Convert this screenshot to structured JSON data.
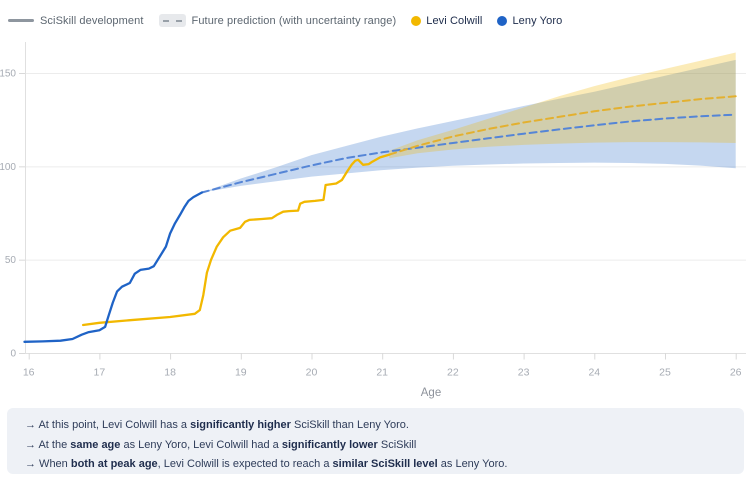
{
  "legend": {
    "sciskill_development": "SciSkill development",
    "future_prediction": "Future prediction (with uncertainty range)",
    "player1": "Levi Colwill",
    "player2": "Leny Yoro"
  },
  "colors": {
    "levi": "#F2B800",
    "levi_pred": "#E3B02F",
    "levi_band": "rgba(242,184,0,0.28)",
    "yoro": "#1F63C6",
    "yoro_pred": "#5585D6",
    "yoro_band": "rgba(31,99,198,0.26)",
    "grid": "#ececec",
    "axis": "#e0e0e0",
    "tick": "#d9d9d9",
    "tick_label": "#a6abb3",
    "axis_title": "#8d929b",
    "legend_text": "#5c6670",
    "player_text": "#1c2b4a",
    "panel_bg": "#eef1f6",
    "panel_text": "#2e3c59"
  },
  "chart_data": {
    "type": "line",
    "title": "",
    "xlabel": "Age",
    "ylabel": "",
    "x_ticks": [
      16,
      17,
      18,
      19,
      20,
      21,
      22,
      23,
      24,
      25,
      26
    ],
    "y_ticks": [
      0,
      50,
      100,
      150
    ],
    "xlim": [
      15.94,
      26
    ],
    "ylim": [
      0,
      166
    ],
    "grid": "horizontal",
    "legend_position": "top-left",
    "series": [
      {
        "id": "yoro-uncertainty-band",
        "name": "Leny Yoro future prediction uncertainty range",
        "role": "band",
        "color": "rgba(31,99,198,0.26)",
        "points": [
          [
            18.45,
            86,
            86
          ],
          [
            19,
            89.5,
            93.5
          ],
          [
            19.5,
            92,
            99.5
          ],
          [
            20,
            94.5,
            106
          ],
          [
            20.5,
            96.2,
            111
          ],
          [
            21,
            98,
            116
          ],
          [
            21.5,
            99.3,
            120.3
          ],
          [
            22,
            100.3,
            124.3
          ],
          [
            22.5,
            101,
            128.3
          ],
          [
            23,
            101.5,
            132.3
          ],
          [
            23.5,
            101.8,
            136.2
          ],
          [
            24,
            102,
            140
          ],
          [
            24.5,
            101.8,
            144.2
          ],
          [
            25,
            101.3,
            148.5
          ],
          [
            25.5,
            100.4,
            152.8
          ],
          [
            26,
            99,
            157
          ]
        ]
      },
      {
        "id": "levi-uncertainty-band",
        "name": "Levi Colwill future prediction uncertainty range",
        "role": "band",
        "color": "rgba(242,184,0,0.28)",
        "points": [
          [
            21.1,
            104.3,
            108.3
          ],
          [
            21.5,
            107,
            114
          ],
          [
            22,
            109,
            119.5
          ],
          [
            22.5,
            110.5,
            125.5
          ],
          [
            23,
            111.5,
            131.5
          ],
          [
            23.5,
            112.2,
            137.5
          ],
          [
            24,
            112.7,
            143
          ],
          [
            24.5,
            113,
            147.8
          ],
          [
            25,
            113,
            152.2
          ],
          [
            25.5,
            112.8,
            156.6
          ],
          [
            26,
            112.5,
            161
          ]
        ]
      },
      {
        "id": "yoro-prediction",
        "name": "Leny Yoro future prediction",
        "role": "prediction",
        "color": "#5585D6",
        "width": 2,
        "dash": "7 4.5",
        "points": [
          [
            18.45,
            86
          ],
          [
            19,
            91.5
          ],
          [
            19.5,
            96
          ],
          [
            20,
            100.5
          ],
          [
            20.5,
            104.5
          ],
          [
            21,
            107.5
          ],
          [
            21.5,
            110
          ],
          [
            22,
            112.5
          ],
          [
            22.5,
            115
          ],
          [
            23,
            117.5
          ],
          [
            23.5,
            119.8
          ],
          [
            24,
            122
          ],
          [
            24.5,
            124
          ],
          [
            25,
            125.6
          ],
          [
            25.5,
            126.8
          ],
          [
            26,
            127.7
          ]
        ]
      },
      {
        "id": "levi-prediction",
        "name": "Levi Colwill future prediction",
        "role": "prediction",
        "color": "#E3B02F",
        "width": 2,
        "dash": "7 4.5",
        "points": [
          [
            21.1,
            106.3
          ],
          [
            21.5,
            111
          ],
          [
            22,
            116
          ],
          [
            22.5,
            120
          ],
          [
            23,
            123.5
          ],
          [
            23.5,
            126.5
          ],
          [
            24,
            129.5
          ],
          [
            24.5,
            132
          ],
          [
            25,
            134
          ],
          [
            25.5,
            136
          ],
          [
            26,
            137.5
          ]
        ]
      },
      {
        "id": "levi-history",
        "name": "Levi Colwill SciSkill development",
        "role": "history",
        "color": "#F2B800",
        "width": 2.3,
        "points": [
          [
            16.77,
            15
          ],
          [
            17.0,
            16.2
          ],
          [
            17.5,
            17.8
          ],
          [
            18.0,
            19.3
          ],
          [
            18.35,
            21
          ],
          [
            18.42,
            23
          ],
          [
            18.47,
            31
          ],
          [
            18.52,
            43
          ],
          [
            18.58,
            50
          ],
          [
            18.66,
            57
          ],
          [
            18.75,
            62
          ],
          [
            18.85,
            65.5
          ],
          [
            18.99,
            67
          ],
          [
            19.06,
            70.3
          ],
          [
            19.12,
            71.3
          ],
          [
            19.3,
            71.8
          ],
          [
            19.44,
            72.2
          ],
          [
            19.51,
            74
          ],
          [
            19.6,
            75.7
          ],
          [
            19.68,
            76
          ],
          [
            19.81,
            76.3
          ],
          [
            19.84,
            80
          ],
          [
            19.9,
            81
          ],
          [
            20.05,
            81.5
          ],
          [
            20.17,
            82
          ],
          [
            20.2,
            90
          ],
          [
            20.35,
            90.8
          ],
          [
            20.43,
            92.7
          ],
          [
            20.5,
            97
          ],
          [
            20.57,
            101
          ],
          [
            20.62,
            103
          ],
          [
            20.66,
            103.5
          ],
          [
            20.73,
            100.8
          ],
          [
            20.81,
            101.2
          ],
          [
            20.86,
            102.5
          ],
          [
            20.97,
            104.8
          ],
          [
            21.1,
            106.3
          ]
        ]
      },
      {
        "id": "yoro-history",
        "name": "Leny Yoro SciSkill development",
        "role": "history",
        "color": "#1F63C6",
        "width": 2.3,
        "points": [
          [
            15.94,
            6
          ],
          [
            16.2,
            6.2
          ],
          [
            16.45,
            6.6
          ],
          [
            16.62,
            7.5
          ],
          [
            16.75,
            9.8
          ],
          [
            16.85,
            11.2
          ],
          [
            17.0,
            12.2
          ],
          [
            17.08,
            14
          ],
          [
            17.13,
            20
          ],
          [
            17.19,
            27
          ],
          [
            17.25,
            33
          ],
          [
            17.32,
            35.5
          ],
          [
            17.43,
            37.5
          ],
          [
            17.5,
            42.5
          ],
          [
            17.58,
            44.5
          ],
          [
            17.7,
            45.2
          ],
          [
            17.77,
            46.5
          ],
          [
            17.86,
            52
          ],
          [
            17.94,
            57
          ],
          [
            18.0,
            64
          ],
          [
            18.07,
            69.5
          ],
          [
            18.14,
            74
          ],
          [
            18.2,
            78
          ],
          [
            18.26,
            81.5
          ],
          [
            18.33,
            83.5
          ],
          [
            18.45,
            86
          ]
        ]
      }
    ]
  },
  "annotations": [
    {
      "segments": [
        {
          "text": "→ At this point, Levi Colwill has a ",
          "bold": false
        },
        {
          "text": "significantly higher",
          "bold": true
        },
        {
          "text": " SciSkill than Leny Yoro.",
          "bold": false
        }
      ]
    },
    {
      "segments": [
        {
          "text": "→ At the ",
          "bold": false
        },
        {
          "text": "same age",
          "bold": true
        },
        {
          "text": " as Leny Yoro, Levi Colwill had a ",
          "bold": false
        },
        {
          "text": "significantly lower",
          "bold": true
        },
        {
          "text": " SciSkill",
          "bold": false
        }
      ]
    },
    {
      "segments": [
        {
          "text": "→ When ",
          "bold": false
        },
        {
          "text": "both at peak age",
          "bold": true
        },
        {
          "text": ", Levi Colwill is expected to reach a ",
          "bold": false
        },
        {
          "text": "similar SciSkill level",
          "bold": true
        },
        {
          "text": " as Leny Yoro.",
          "bold": false
        }
      ]
    }
  ]
}
